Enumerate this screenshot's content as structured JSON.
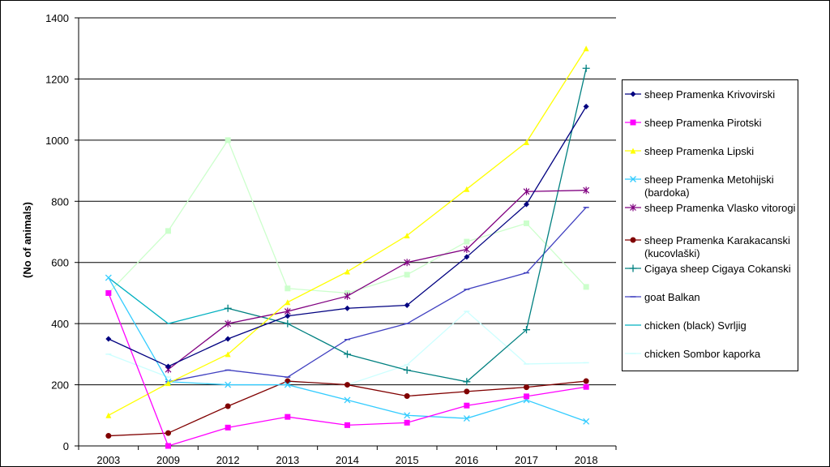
{
  "chart_data": {
    "type": "line",
    "title": "",
    "xlabel": "",
    "ylabel": "(No of animals)",
    "ylim": [
      0,
      1400
    ],
    "yticks": [
      0,
      200,
      400,
      600,
      800,
      1000,
      1200,
      1400
    ],
    "grid": true,
    "legend_position": "right",
    "categories": [
      "2003",
      "2009",
      "2012",
      "2013",
      "2014",
      "2015",
      "2016",
      "2017",
      "2018"
    ],
    "series": [
      {
        "name": "sheep Pramenka Krivovirski",
        "color": "#000080",
        "marker": "diamond",
        "values": [
          350,
          260,
          350,
          425,
          450,
          460,
          618,
          790,
          1110
        ]
      },
      {
        "name": "sheep Pramenka Pirotski",
        "color": "#ff00ff",
        "marker": "square",
        "values": [
          500,
          0,
          60,
          95,
          68,
          76,
          132,
          162,
          193
        ]
      },
      {
        "name": "sheep Pramenka Lipski",
        "color": "#ffff00",
        "marker": "triangle",
        "values": [
          100,
          205,
          300,
          470,
          570,
          688,
          840,
          993,
          1300
        ]
      },
      {
        "name": "sheep Pramenka Metohijski (bardoka)",
        "color": "#33ccff",
        "marker": "cross",
        "values": [
          550,
          210,
          200,
          200,
          150,
          100,
          90,
          150,
          80
        ]
      },
      {
        "name": "sheep Pramenka Vlasko vitorogi",
        "color": "#800080",
        "marker": "star",
        "values": [
          null,
          250,
          400,
          440,
          490,
          600,
          643,
          832,
          836
        ]
      },
      {
        "name": "sheep Pramenka Karakacanski   (kucovlaški)",
        "color": "#800000",
        "marker": "circle",
        "values": [
          33,
          42,
          130,
          212,
          200,
          163,
          178,
          192,
          212
        ]
      },
      {
        "name": "Cigaya sheep Cigaya Cokanski",
        "color": "#008080",
        "marker": "plus",
        "values": [
          null,
          null,
          450,
          400,
          300,
          248,
          210,
          380,
          1235
        ]
      },
      {
        "name": "goat Balkan",
        "color": "#4040c0",
        "marker": "dash",
        "values": [
          null,
          210,
          248,
          225,
          348,
          400,
          512,
          566,
          780
        ]
      },
      {
        "name": "chicken (black) Svrljig",
        "color": "#00b0c0",
        "marker": "none",
        "values": [
          550,
          400,
          450,
          null,
          null,
          null,
          null,
          null,
          null
        ]
      },
      {
        "name": "chicken Sombor kaporka",
        "color": "#ccffff",
        "marker": "dash",
        "values": [
          300,
          225,
          null,
          210,
          200,
          265,
          440,
          268,
          272
        ]
      },
      {
        "name": "",
        "color": "#ccffcc",
        "marker": "square",
        "values": [
          500,
          703,
          1000,
          515,
          500,
          560,
          668,
          728,
          520
        ]
      }
    ]
  }
}
